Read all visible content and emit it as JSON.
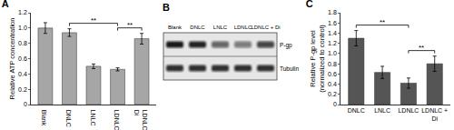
{
  "chart_data": [
    {
      "type": "bar",
      "title": "A",
      "ylabel": "Relative ATP concentration",
      "categories": [
        "Blank",
        "DNLC",
        "LNLC",
        "LDNLC",
        "LDNLC + Di"
      ],
      "values": [
        1.0,
        0.94,
        0.5,
        0.46,
        0.86
      ],
      "errors": [
        0.07,
        0.05,
        0.03,
        0.02,
        0.07
      ],
      "color": "#a6a6a6",
      "ylim": [
        0,
        1.2
      ],
      "yticks": [
        0,
        0.2,
        0.4,
        0.6,
        0.8,
        {
          "value": 1,
          "label": "1.0"
        },
        1.2
      ],
      "grid": false,
      "annotations": [
        {
          "text": "**",
          "from": "DNLC",
          "to": "LDNLC"
        },
        {
          "text": "**",
          "from": "LDNLC",
          "to": "LDNLC + Di"
        }
      ]
    },
    {
      "type": "bar",
      "title": "C",
      "ylabel": "Relative P-gp level (normalized to control)",
      "categories": [
        "DNLC",
        "LNLC",
        "LDNLC",
        "LDNLC + Di"
      ],
      "values": [
        1.3,
        0.63,
        0.42,
        0.8
      ],
      "errors": [
        0.15,
        0.12,
        0.1,
        0.15
      ],
      "color": "#555555",
      "ylim": [
        0,
        1.8
      ],
      "yticks": [
        0,
        0.2,
        0.4,
        0.6,
        0.8,
        {
          "value": 1,
          "label": "1.0"
        },
        1.2,
        1.4,
        1.6,
        1.8
      ],
      "grid": false,
      "annotations": [
        {
          "text": "**",
          "from": "DNLC",
          "to": "LDNLC"
        },
        {
          "text": "**",
          "from": "LDNLC",
          "to": "LDNLC + Di"
        }
      ]
    }
  ],
  "blot": {
    "label": "B",
    "lanes": [
      "Blank",
      "DNLC",
      "LNLC",
      "LDNLC",
      "LDNLC + Di"
    ],
    "rows": [
      {
        "name": "P-gp",
        "intensity": [
          0.95,
          0.9,
          0.6,
          0.5,
          0.75
        ]
      },
      {
        "name": "Tubulin",
        "intensity": [
          0.85,
          0.85,
          0.85,
          0.85,
          0.85
        ]
      }
    ]
  }
}
